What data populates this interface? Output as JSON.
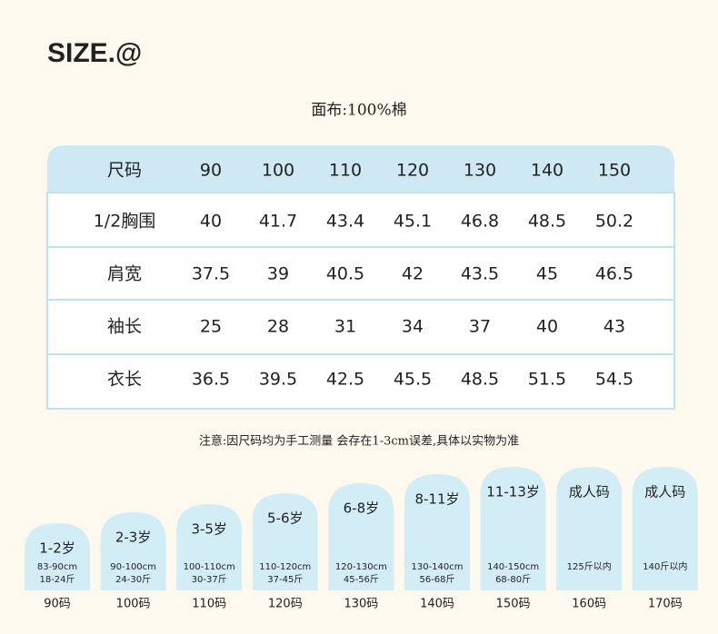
{
  "header": {
    "title": "SIZE.@",
    "subtitle": "面布:100%棉"
  },
  "table": {
    "header": [
      "尺码",
      "90",
      "100",
      "110",
      "120",
      "130",
      "140",
      "150"
    ],
    "rows": [
      [
        "1/2胸围",
        "40",
        "41.7",
        "43.4",
        "45.1",
        "46.8",
        "48.5",
        "50.2"
      ],
      [
        "肩宽",
        "37.5",
        "39",
        "40.5",
        "42",
        "43.5",
        "45",
        "46.5"
      ],
      [
        "袖长",
        "25",
        "28",
        "31",
        "34",
        "37",
        "40",
        "43"
      ],
      [
        "衣长",
        "36.5",
        "39.5",
        "42.5",
        "45.5",
        "48.5",
        "51.5",
        "54.5"
      ]
    ]
  },
  "note": "注意:因尺码均为手工测量 会存在1-3cm误差,具体以实物为准",
  "sizes": [
    {
      "age": "1-2岁",
      "lines": [
        "83-90cm",
        "18-24斤"
      ],
      "code": "90码"
    },
    {
      "age": "2-3岁",
      "lines": [
        "90-100cm",
        "24-30斤"
      ],
      "code": "100码"
    },
    {
      "age": "3-5岁",
      "lines": [
        "100-110cm",
        "30-37斤"
      ],
      "code": "110码"
    },
    {
      "age": "5-6岁",
      "lines": [
        "110-120cm",
        "37-45斤"
      ],
      "code": "120码"
    },
    {
      "age": "6-8岁",
      "lines": [
        "120-130cm",
        "45-56斤"
      ],
      "code": "130码"
    },
    {
      "age": "8-11岁",
      "lines": [
        "130-140cm",
        "56-68斤"
      ],
      "code": "140码"
    },
    {
      "age": "11-13岁",
      "lines": [
        "140-150cm",
        "68-80斤"
      ],
      "code": "150码"
    },
    {
      "age": "成人码",
      "lines": [
        "125斤以内"
      ],
      "code": "160码"
    },
    {
      "age": "成人码",
      "lines": [
        "140斤以内"
      ],
      "code": "170码"
    }
  ]
}
